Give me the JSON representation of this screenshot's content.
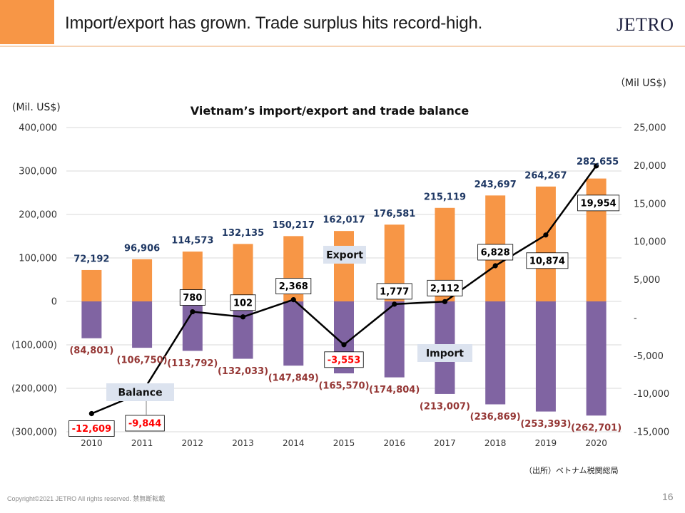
{
  "header": {
    "title": "Import/export has grown. Trade surplus hits record-high.",
    "logo": "JETRO",
    "accent_color": "#F79646"
  },
  "chart_data": {
    "type": "bar",
    "title": "Vietnam’s import/export and trade balance",
    "ylabel": "(Mil. US$)",
    "y2label": "（Mil US$)",
    "categories": [
      "2010",
      "2011",
      "2012",
      "2013",
      "2014",
      "2015",
      "2016",
      "2017",
      "2018",
      "2019",
      "2020"
    ],
    "ylim": [
      -300000,
      400000
    ],
    "y2lim": [
      -15000,
      25000
    ],
    "y_ticks": [
      {
        "value": 400000,
        "label": "400,000"
      },
      {
        "value": 300000,
        "label": "300,000"
      },
      {
        "value": 200000,
        "label": "200,000"
      },
      {
        "value": 100000,
        "label": "100,000"
      },
      {
        "value": 0,
        "label": "0"
      },
      {
        "value": -100000,
        "label": "(100,000)"
      },
      {
        "value": -200000,
        "label": "(200,000)"
      },
      {
        "value": -300000,
        "label": "(300,000)"
      }
    ],
    "y2_ticks": [
      {
        "value": 25000,
        "label": "25,000"
      },
      {
        "value": 20000,
        "label": "20,000"
      },
      {
        "value": 15000,
        "label": "15,000"
      },
      {
        "value": 10000,
        "label": "10,000"
      },
      {
        "value": 5000,
        "label": "5,000"
      },
      {
        "value": 0,
        "label": "-"
      },
      {
        "value": -5000,
        "label": "-5,000"
      },
      {
        "value": -10000,
        "label": "-10,000"
      },
      {
        "value": -15000,
        "label": "-15,000"
      }
    ],
    "grid": true,
    "legend": "none",
    "series": [
      {
        "name": "Export",
        "type": "bar",
        "axis": "left",
        "color": "#F79646",
        "label_color": "#1F3864",
        "values": [
          72192,
          96906,
          114573,
          132135,
          150217,
          162017,
          176581,
          215119,
          243697,
          264267,
          282655
        ],
        "labels": [
          "72,192",
          "96,906",
          "114,573",
          "132,135",
          "150,217",
          "162,017",
          "176,581",
          "215,119",
          "243,697",
          "264,267",
          "282,655"
        ]
      },
      {
        "name": "Import",
        "type": "bar",
        "axis": "left",
        "color": "#8064A2",
        "label_color": "#953735",
        "values": [
          -84801,
          -106750,
          -113792,
          -132033,
          -147849,
          -165570,
          -174804,
          -213007,
          -236869,
          -253393,
          -262701
        ],
        "labels": [
          "(84,801)",
          "(106,750)",
          "(113,792)",
          "(132,033)",
          "(147,849)",
          "(165,570)",
          "(174,804)",
          "(213,007)",
          "(236,869)",
          "(253,393)",
          "(262,701)"
        ]
      },
      {
        "name": "Balance",
        "type": "line",
        "axis": "right",
        "color": "#000000",
        "label_color_positive": "#000000",
        "label_color_negative": "#FF0000",
        "values": [
          -12609,
          -9844,
          780,
          102,
          2368,
          -3553,
          1777,
          2112,
          6828,
          10874,
          19954
        ],
        "labels": [
          "-12,609",
          "-9,844",
          "780",
          "102",
          "2,368",
          "-3,553",
          "1,777",
          "2,112",
          "6,828",
          "10,874",
          "19,954"
        ]
      }
    ]
  },
  "source_note": "（出所）ベトナム税関総局",
  "footer": {
    "copyright": "Copyright©2021 JETRO All rights reserved. 禁無断転載",
    "page_number": "16"
  }
}
